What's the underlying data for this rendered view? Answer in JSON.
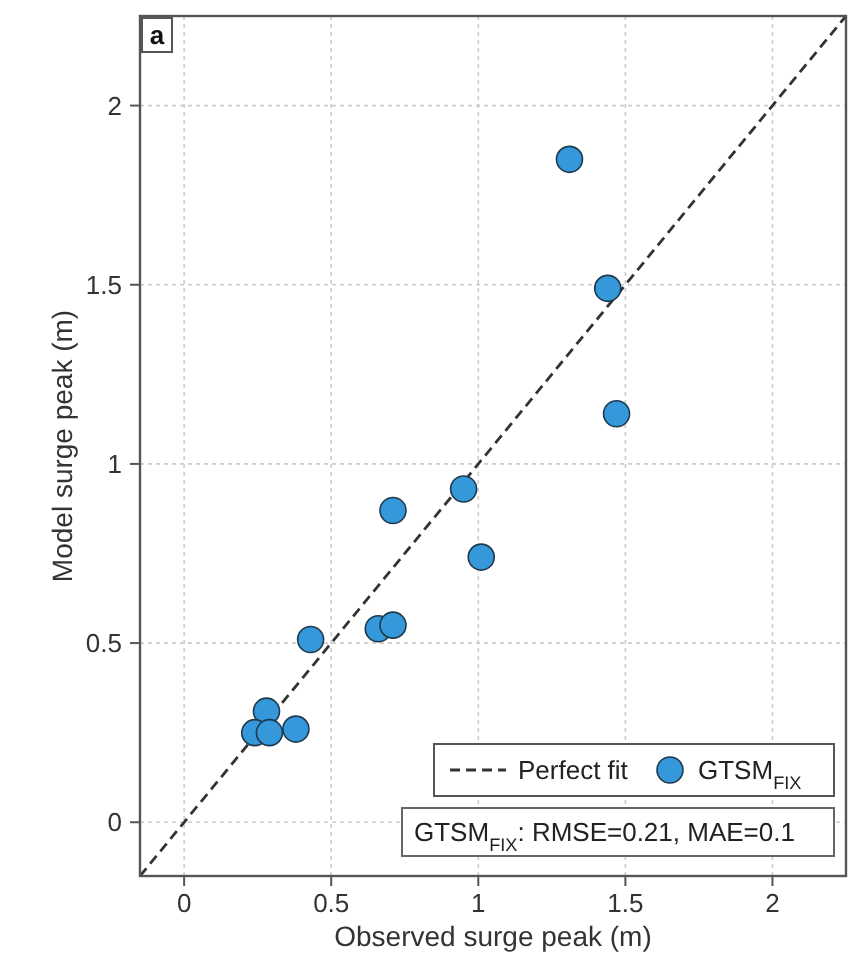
{
  "chart_data": {
    "type": "scatter",
    "xlabel": "Observed surge peak (m)",
    "ylabel": "Model surge peak (m)",
    "xlim": [
      -0.15,
      2.25
    ],
    "ylim": [
      -0.15,
      2.25
    ],
    "xticks": [
      0,
      0.5,
      1,
      1.5,
      2
    ],
    "yticks": [
      0,
      0.5,
      1,
      1.5,
      2
    ],
    "grid": true,
    "legend": "bottom right",
    "marker": "circle",
    "series": [
      {
        "name": "Perfect fit",
        "type": "line",
        "color": "#333333",
        "line_style": "dashed",
        "marker": "none",
        "x": [
          -0.15,
          2.25
        ],
        "values": [
          -0.15,
          2.25
        ]
      },
      {
        "name": "GTSM$_{FIX}$",
        "color": "#3498db",
        "x": [
          1.31,
          1.44,
          1.47,
          0.95,
          0.71,
          1.01,
          0.43,
          0.66,
          0.71,
          0.28,
          0.24,
          0.29,
          0.38
        ],
        "values": [
          1.85,
          1.49,
          1.14,
          0.93,
          0.87,
          0.74,
          0.51,
          0.54,
          0.55,
          0.31,
          0.25,
          0.25,
          0.26
        ]
      }
    ],
    "annotations": [
      "a",
      "GTSM$_{FIX}$: RMSE=0.21, MAE=0.1"
    ]
  }
}
